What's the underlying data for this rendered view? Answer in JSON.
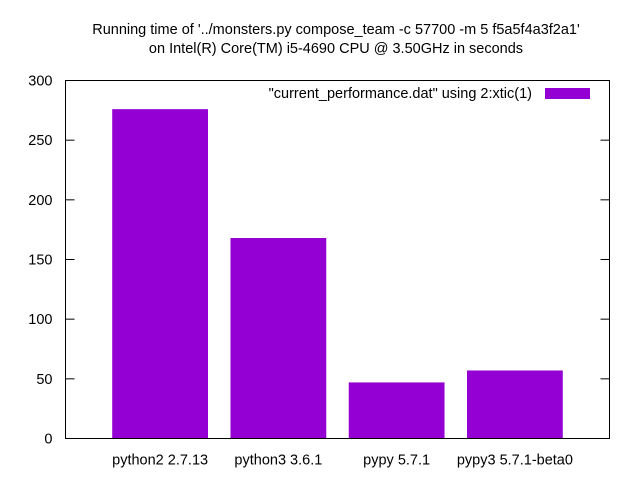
{
  "chart_data": {
    "type": "bar",
    "title_lines": [
      "Running time of '../monsters.py compose_team -c 57700 -m 5 f5a5f4a3f2a1'",
      "on Intel(R) Core(TM) i5-4690 CPU @ 3.50GHz in seconds"
    ],
    "categories": [
      "python2 2.7.13",
      "python3 3.6.1",
      "pypy 5.7.1",
      "pypy3 5.7.1-beta0"
    ],
    "series": [
      {
        "name": "\"current_performance.dat\" using 2:xtic(1)",
        "values": [
          276,
          168,
          47,
          57
        ],
        "color": "#9400d3"
      }
    ],
    "xlabel": "",
    "ylabel": "",
    "ylim": [
      0,
      300
    ],
    "yticks": [
      0,
      50,
      100,
      150,
      200,
      250,
      300
    ],
    "grid": false,
    "legend_position": "top-right"
  }
}
